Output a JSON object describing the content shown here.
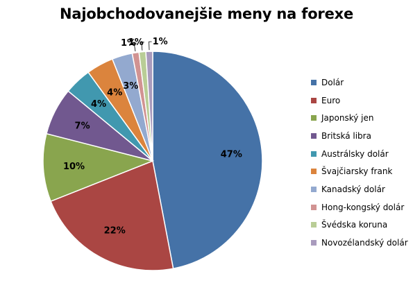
{
  "chart_data": {
    "type": "pie",
    "title": "Najobchodovanejšie meny na forexe",
    "slices": [
      {
        "name": "Dolár",
        "value": 47,
        "label": "47%",
        "color": "#4572A7"
      },
      {
        "name": "Euro",
        "value": 22,
        "label": "22%",
        "color": "#AA4643"
      },
      {
        "name": "Japonský jen",
        "value": 10,
        "label": "10%",
        "color": "#89A54E"
      },
      {
        "name": "Britská libra",
        "value": 7,
        "label": "7%",
        "color": "#71588F"
      },
      {
        "name": "Austrálsky dolár",
        "value": 4,
        "label": "4%",
        "color": "#4198AF"
      },
      {
        "name": "Švajčiarsky frank",
        "value": 4,
        "label": "4%",
        "color": "#DB843D"
      },
      {
        "name": "Kanadský dolár",
        "value": 3,
        "label": "3%",
        "color": "#93A9CF"
      },
      {
        "name": "Hong-kongský dolár",
        "value": 1,
        "label": "1%",
        "color": "#D19392"
      },
      {
        "name": "Švédska koruna",
        "value": 1,
        "label": "1%",
        "color": "#B9CD96"
      },
      {
        "name": "Novozélandský dolár",
        "value": 1,
        "label": "1%",
        "color": "#A99BBD"
      }
    ],
    "legend_position": "right"
  }
}
